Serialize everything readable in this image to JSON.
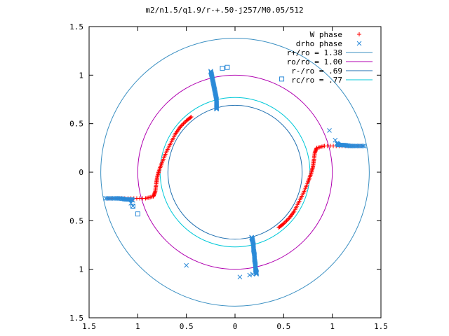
{
  "chart_data": {
    "type": "scatter",
    "title": "m2/n1.5/q1.9/r-+.50-j257/M0.05/512",
    "xlim": [
      -1.5,
      1.5
    ],
    "ylim": [
      -1.5,
      1.5
    ],
    "x_ticks": [
      -1.5,
      -1,
      -0.5,
      0,
      0.5,
      1,
      1.5
    ],
    "x_tick_labels": [
      "1.5",
      "1",
      "0.5",
      "0",
      "0.5",
      "1",
      "1.5"
    ],
    "y_ticks": [
      1.5,
      1,
      0.5,
      0,
      -0.5,
      -1,
      -1.5
    ],
    "y_tick_labels": [
      "1.5",
      "1",
      "0.5",
      "0",
      "0.5",
      "1",
      "1.5"
    ],
    "grid": false,
    "legend_position": "top-right",
    "circles": [
      {
        "name": "r+/ro = 1.38",
        "radius": 1.38,
        "color": "#3a8fc2"
      },
      {
        "name": "ro/ro = 1.00",
        "radius": 1.0,
        "color": "#b000b0"
      },
      {
        "name": "r-/ro = .69",
        "radius": 0.69,
        "color": "#1f6fb0"
      },
      {
        "name": "rc/ro = .77",
        "radius": 0.77,
        "color": "#00c8d8"
      }
    ],
    "series": [
      {
        "name": "W phase",
        "marker": "+",
        "color": "#ff0000",
        "arcs": [
          {
            "x": [
              -1.3,
              -1.1,
              -0.92,
              -0.84,
              -0.82,
              -0.81,
              -0.8,
              -0.78,
              -0.75,
              -0.71,
              -0.66,
              -0.61,
              -0.56,
              -0.5,
              -0.45
            ],
            "y": [
              -0.27,
              -0.27,
              -0.27,
              -0.25,
              -0.2,
              -0.12,
              -0.05,
              0.02,
              0.1,
              0.2,
              0.3,
              0.4,
              0.47,
              0.53,
              0.57
            ]
          },
          {
            "x": [
              1.3,
              1.1,
              0.92,
              0.84,
              0.82,
              0.81,
              0.8,
              0.78,
              0.75,
              0.71,
              0.66,
              0.61,
              0.56,
              0.5,
              0.45
            ],
            "y": [
              0.27,
              0.27,
              0.27,
              0.25,
              0.2,
              0.12,
              0.05,
              -0.02,
              -0.1,
              -0.2,
              -0.3,
              -0.4,
              -0.47,
              -0.53,
              -0.57
            ]
          }
        ]
      },
      {
        "name": "drho phase",
        "marker": "x",
        "color": "#2a8ad8",
        "arcs": [
          {
            "x": [
              -0.25,
              -0.24,
              -0.23,
              -0.22,
              -0.21,
              -0.2,
              -0.19,
              -0.19,
              -0.19,
              -0.19
            ],
            "y": [
              1.04,
              1.0,
              0.95,
              0.9,
              0.85,
              0.8,
              0.75,
              0.7,
              0.67,
              0.65
            ]
          },
          {
            "x": [
              0.17,
              0.18,
              0.19,
              0.19,
              0.2,
              0.2,
              0.21,
              0.21,
              0.22,
              0.22
            ],
            "y": [
              -0.67,
              -0.7,
              -0.75,
              -0.8,
              -0.85,
              -0.9,
              -0.95,
              -1.0,
              -1.03,
              -1.05
            ]
          },
          {
            "x": [
              1.33,
              1.25,
              1.18,
              1.12,
              1.07,
              1.05
            ],
            "y": [
              0.27,
              0.27,
              0.27,
              0.28,
              0.28,
              0.29
            ]
          },
          {
            "x": [
              -1.33,
              -1.25,
              -1.18,
              -1.12,
              -1.07,
              -1.05
            ],
            "y": [
              -0.27,
              -0.27,
              -0.27,
              -0.28,
              -0.28,
              -0.29
            ]
          }
        ],
        "outliers": {
          "x": [
            0.97,
            1.03,
            1.05,
            -1.07,
            -1.05,
            -0.5,
            0.05,
            0.15,
            0.18
          ],
          "y": [
            0.43,
            0.33,
            0.3,
            -0.32,
            -0.35,
            -0.96,
            -1.08,
            -1.06,
            -1.05
          ]
        },
        "squares": {
          "x": [
            -0.13,
            -0.08,
            0.48,
            -1.0,
            -1.05
          ],
          "y": [
            1.07,
            1.08,
            0.96,
            -0.43,
            -0.35
          ]
        }
      }
    ]
  }
}
